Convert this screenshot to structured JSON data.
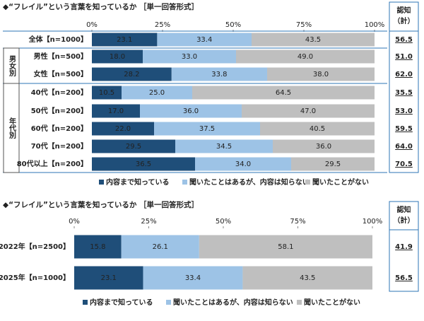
{
  "chart_data": [
    {
      "type": "bar",
      "orientation": "horizontal",
      "stacked": true,
      "title": "◆“フレイル”という言葉を知っているか ［単一回答形式］",
      "categories": [
        "全体【n=1000】",
        "男性【n=500】",
        "女性【n=500】",
        "40代【n=200】",
        "50代【n=200】",
        "60代【n=200】",
        "70代【n=200】",
        "80代以上【n=200】"
      ],
      "groups": [
        "男女別",
        "年代別"
      ],
      "series": [
        {
          "name": "内容まで知っている",
          "color": "#1f4e79",
          "values": [
            23.1,
            18.0,
            28.2,
            10.5,
            17.0,
            22.0,
            29.5,
            36.5
          ],
          "value_labels": [
            "23.1",
            "18.0",
            "28.2",
            "10.5",
            "17.0",
            "22.0",
            "29.5",
            "36.5"
          ]
        },
        {
          "name": "聞いたことはあるが、内容は知らない",
          "color": "#9dc3e6",
          "values": [
            33.4,
            33.0,
            33.8,
            25.0,
            36.0,
            37.5,
            34.5,
            34.0
          ],
          "value_labels": [
            "33.4",
            "33.0",
            "33.8",
            "25.0",
            "36.0",
            "37.5",
            "34.5",
            "34.0"
          ]
        },
        {
          "name": "聞いたことがない",
          "color": "#bfbfbf",
          "values": [
            43.5,
            49.0,
            38.0,
            64.5,
            47.0,
            40.5,
            36.0,
            29.5
          ],
          "value_labels": [
            "43.5",
            "49.0",
            "38.0",
            "64.5",
            "47.0",
            "40.5",
            "36.0",
            "29.5"
          ]
        }
      ],
      "side_title": [
        "認知",
        "（計）"
      ],
      "side_values": [
        56.5,
        51.0,
        62.0,
        35.5,
        53.0,
        59.5,
        64.0,
        70.5
      ],
      "side_value_labels": [
        "56.5",
        "51.0",
        "62.0",
        "35.5",
        "53.0",
        "59.5",
        "64.0",
        "70.5"
      ],
      "xlim": [
        0,
        100
      ],
      "xticks": [
        {
          "value": 0,
          "label": "0%"
        },
        {
          "value": 25,
          "label": "25%"
        },
        {
          "value": 50,
          "label": "50%"
        },
        {
          "value": 75,
          "label": "75%"
        },
        {
          "value": 100,
          "label": "100%"
        }
      ]
    },
    {
      "type": "bar",
      "orientation": "horizontal",
      "stacked": true,
      "title": "◆“フレイル”という言葉を知っているか ［単一回答形式］",
      "categories": [
        "2022年【n=2500】",
        "2025年【n=1000】"
      ],
      "groups": [],
      "series": [
        {
          "name": "内容まで知っている",
          "color": "#1f4e79",
          "values": [
            15.8,
            23.1
          ],
          "value_labels": [
            "15.8",
            "23.1"
          ]
        },
        {
          "name": "聞いたことはあるが、内容は知らない",
          "color": "#9dc3e6",
          "values": [
            26.1,
            33.4
          ],
          "value_labels": [
            "26.1",
            "33.4"
          ]
        },
        {
          "name": "聞いたことがない",
          "color": "#bfbfbf",
          "values": [
            58.1,
            43.5
          ],
          "value_labels": [
            "58.1",
            "43.5"
          ]
        }
      ],
      "side_title": [
        "認知",
        "（計）"
      ],
      "side_values": [
        41.9,
        56.5
      ],
      "side_value_labels": [
        "41.9",
        "56.5"
      ],
      "xlim": [
        0,
        100
      ],
      "xticks": [
        {
          "value": 0,
          "label": "0%"
        },
        {
          "value": 25,
          "label": "25%"
        },
        {
          "value": 50,
          "label": "50%"
        },
        {
          "value": 75,
          "label": "75%"
        },
        {
          "value": 100,
          "label": "100%"
        }
      ]
    }
  ]
}
